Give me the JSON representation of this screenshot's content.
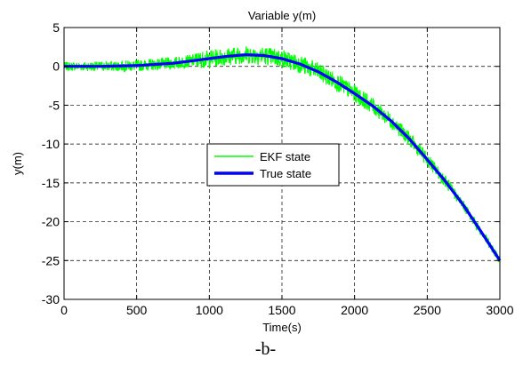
{
  "caption": "-b-",
  "chart_data": {
    "type": "line",
    "title": "Variable y(m)",
    "xlabel": "Time(s)",
    "ylabel": "y(m)",
    "xlim": [
      0,
      3000
    ],
    "ylim": [
      -30,
      5
    ],
    "xticks": [
      0,
      500,
      1000,
      1500,
      2000,
      2500,
      3000
    ],
    "yticks": [
      5,
      0,
      -5,
      -10,
      -15,
      -20,
      -25,
      -30
    ],
    "grid": true,
    "legend_position": "center-left",
    "series": [
      {
        "name": "EKF state",
        "color": "#00ff00",
        "noisy": true,
        "x": [
          0,
          250,
          500,
          750,
          1000,
          1125,
          1250,
          1375,
          1500,
          1625,
          1750,
          1875,
          2000,
          2125,
          2250,
          2375,
          2500,
          2625,
          2750,
          2875,
          3000
        ],
        "y": [
          0,
          0,
          0.1,
          0.4,
          1.0,
          1.3,
          1.5,
          1.4,
          1.0,
          0.3,
          -0.7,
          -2.0,
          -3.5,
          -5.1,
          -7.0,
          -9.3,
          -12.0,
          -14.8,
          -17.9,
          -21.4,
          -25.0
        ]
      },
      {
        "name": "True state",
        "color": "#0000ff",
        "x": [
          0,
          250,
          500,
          750,
          1000,
          1125,
          1250,
          1375,
          1500,
          1625,
          1750,
          1875,
          2000,
          2125,
          2250,
          2375,
          2500,
          2625,
          2750,
          2875,
          3000
        ],
        "y": [
          0,
          0,
          0.1,
          0.4,
          1.0,
          1.3,
          1.5,
          1.4,
          1.0,
          0.3,
          -0.7,
          -2.0,
          -3.5,
          -5.1,
          -7.0,
          -9.3,
          -12.0,
          -14.8,
          -17.9,
          -21.4,
          -25.0
        ]
      }
    ]
  }
}
